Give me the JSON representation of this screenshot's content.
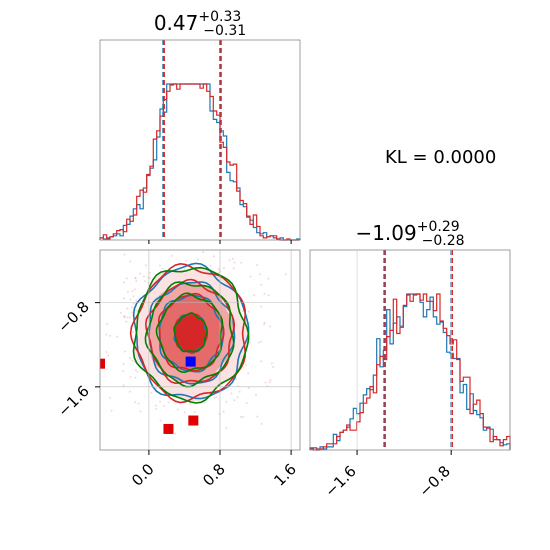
{
  "kl_label": "KL = 0.0000",
  "chart_data": [
    {
      "type": "histogram",
      "panel": "x-marginal",
      "title": {
        "value": "0.47",
        "plus": "+0.33",
        "minus": "−0.31"
      },
      "xlim": [
        -0.55,
        1.7
      ],
      "series": [
        {
          "name": "",
          "color": "#1f77b4",
          "mean": 0.47,
          "sd": 0.31
        },
        {
          "name": "",
          "color": "#d62728",
          "mean": 0.46,
          "sd": 0.32
        }
      ],
      "quantile_lines": [
        0.16,
        0.8
      ],
      "truth_line": 0.16
    },
    {
      "type": "histogram",
      "panel": "y-marginal",
      "title": {
        "value": "−1.09",
        "plus": "+0.29",
        "minus": "−0.28"
      },
      "xlim": [
        -2.0,
        -0.3
      ],
      "ticks": [
        {
          "value": -1.6,
          "label": "−1.6"
        },
        {
          "value": -0.8,
          "label": "−0.8"
        }
      ],
      "series": [
        {
          "name": "",
          "color": "#1f77b4",
          "mean": -1.09,
          "sd": 0.29
        },
        {
          "name": "",
          "color": "#d62728",
          "mean": -1.08,
          "sd": 0.29
        }
      ],
      "quantile_lines": [
        -1.37,
        -0.8
      ],
      "truth_line": -1.37
    },
    {
      "type": "scatter",
      "panel": "joint",
      "xlim": [
        -0.55,
        1.7
      ],
      "ylim": [
        -2.2,
        -0.3
      ],
      "xticks": [
        {
          "value": 0.0,
          "label": "0.0"
        },
        {
          "value": 0.8,
          "label": "0.8"
        },
        {
          "value": 1.6,
          "label": "1.6"
        }
      ],
      "yticks": [
        {
          "value": -0.8,
          "label": "−0.8"
        },
        {
          "value": -1.6,
          "label": "−1.6"
        }
      ],
      "center": [
        0.47,
        -1.09
      ],
      "contour_levels_sd": [
        0.6,
        1.2,
        1.6,
        2.1
      ],
      "contour_colors": [
        "#1f77b4",
        "#d62728",
        "#008000"
      ],
      "markers": [
        {
          "x": 0.47,
          "y": -1.36,
          "color": "#0000ff"
        },
        {
          "x": 0.22,
          "y": -2.0,
          "color": "#e00000"
        },
        {
          "x": 0.5,
          "y": -1.92,
          "color": "#e00000"
        },
        {
          "x": -0.55,
          "y": -1.38,
          "color": "#e00000"
        }
      ],
      "grid": true
    }
  ]
}
